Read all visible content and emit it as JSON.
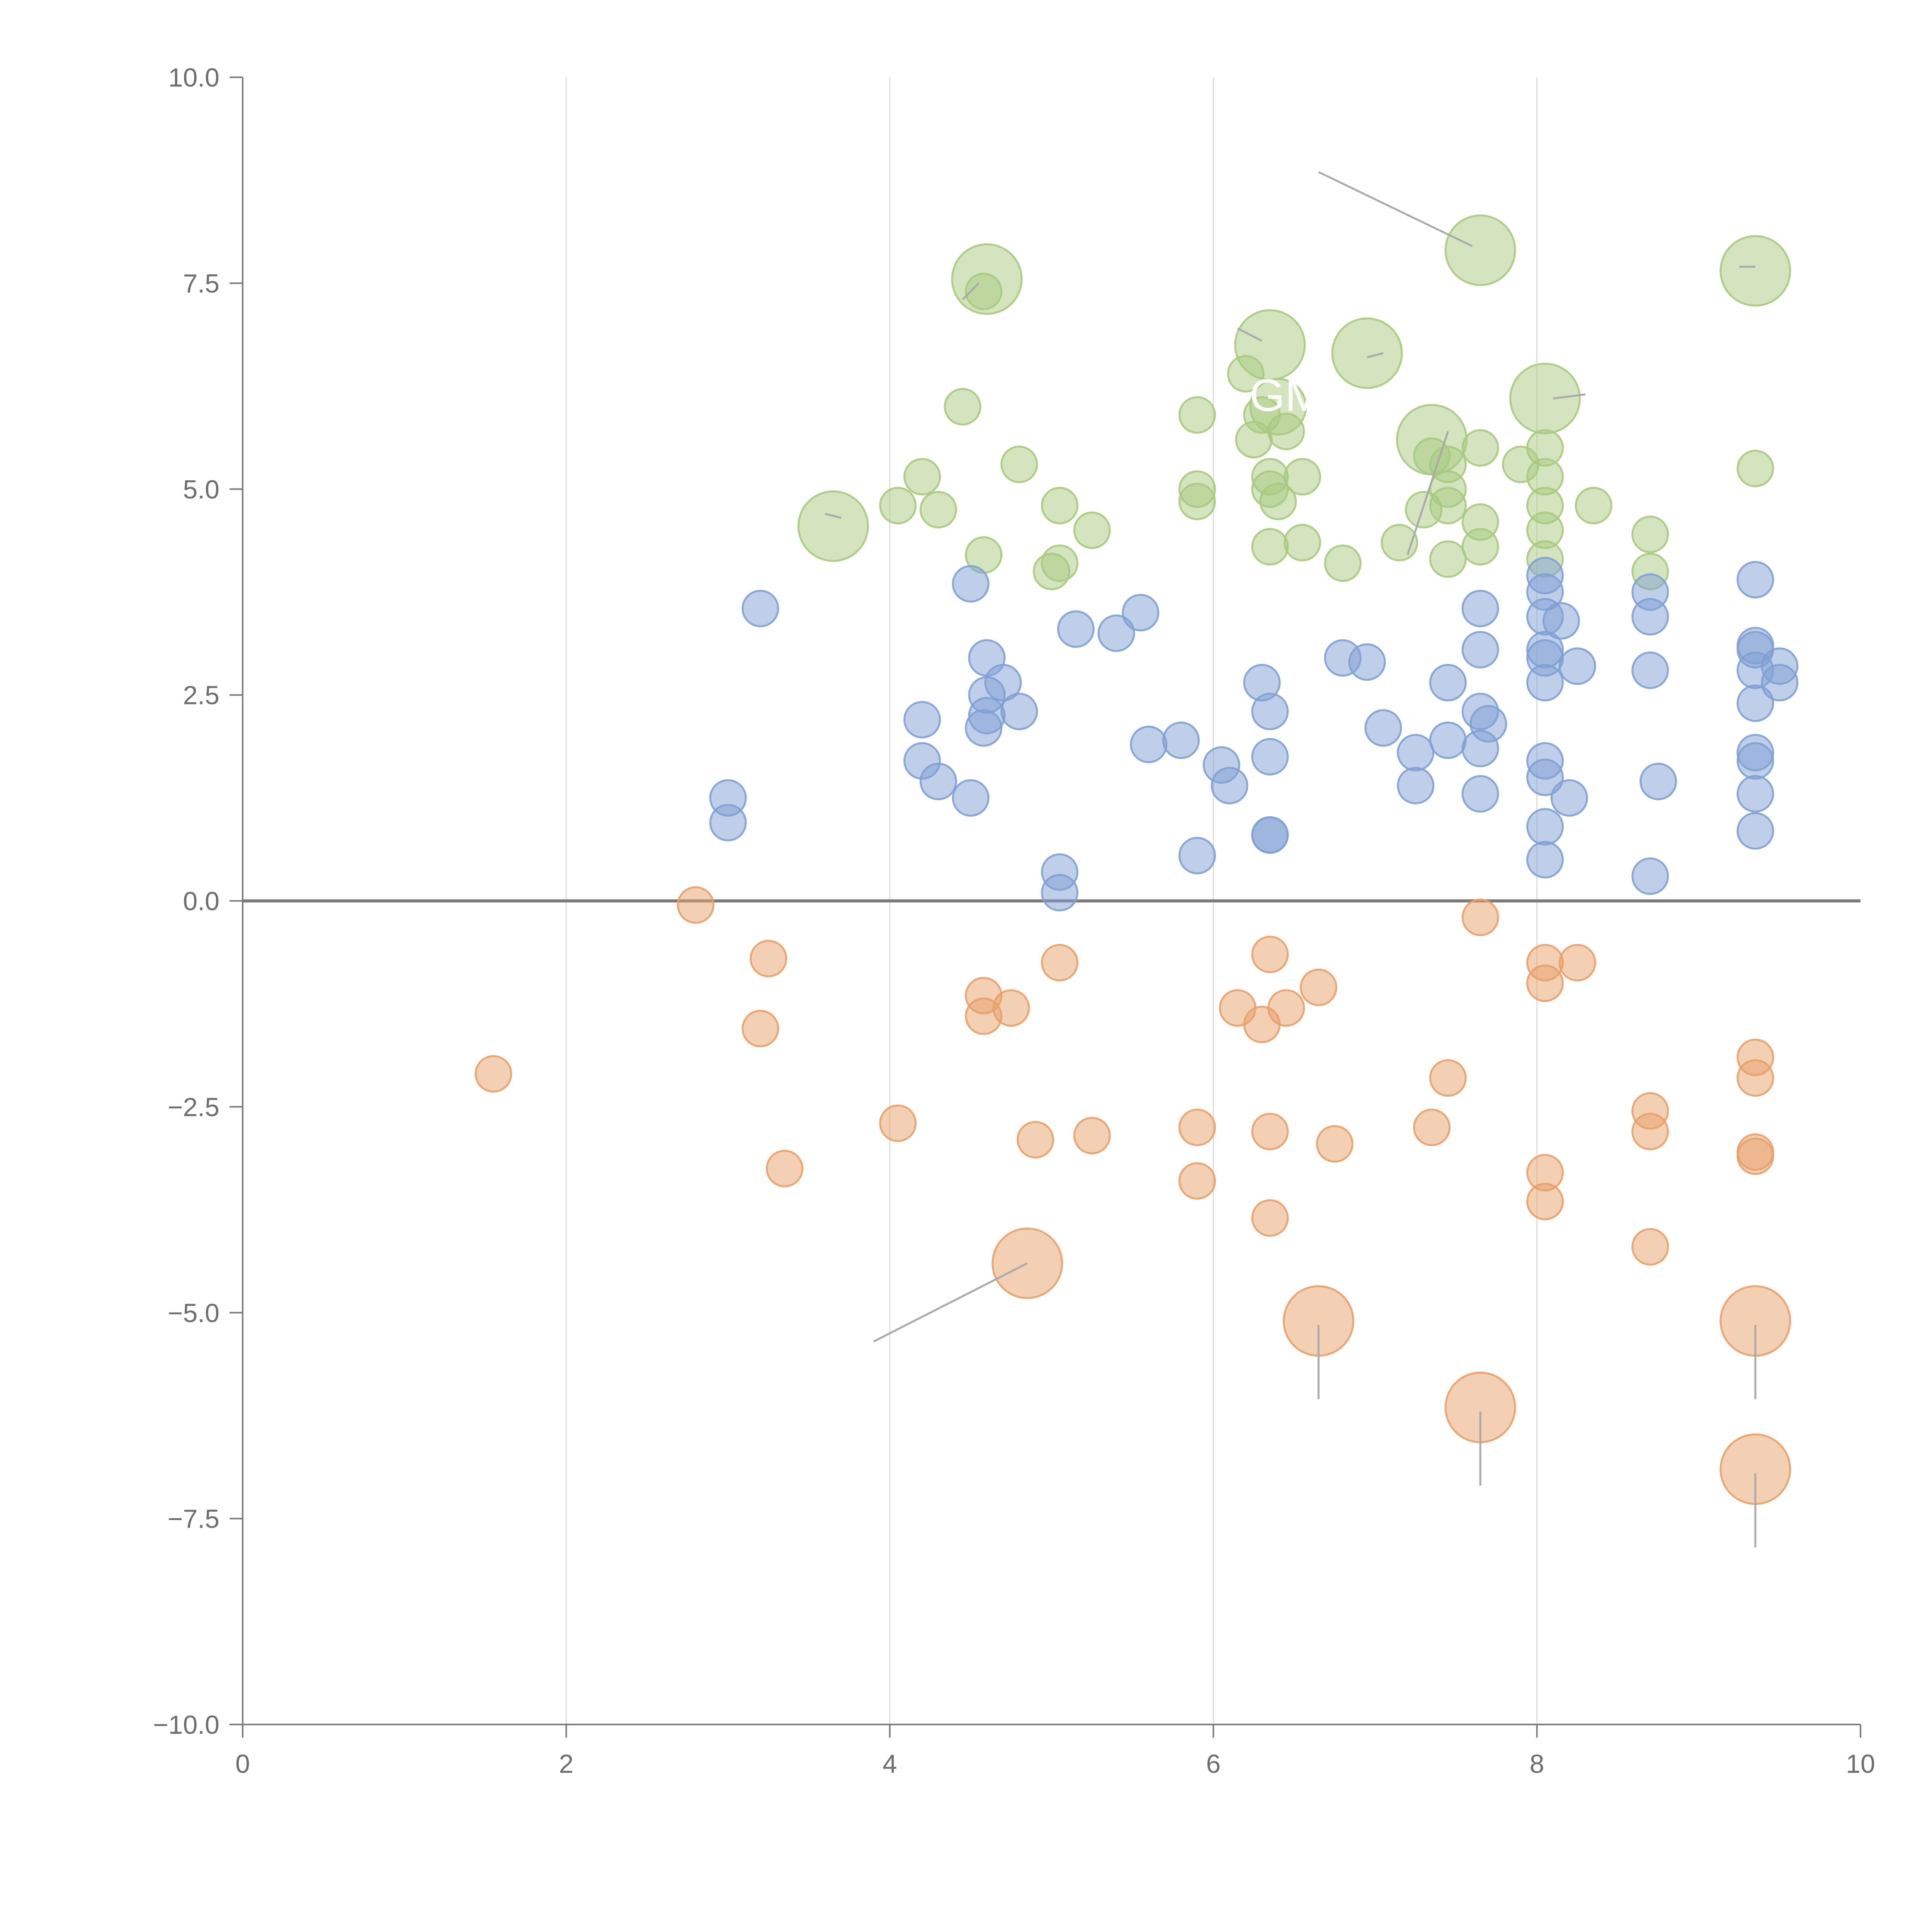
{
  "chart_data": {
    "type": "scatter",
    "title": "",
    "xlabel": "",
    "ylabel": "",
    "xlim": [
      0,
      10
    ],
    "ylim": [
      -10,
      10
    ],
    "x_ticks": [
      "0",
      "2",
      "4",
      "6",
      "8",
      "10"
    ],
    "x_tick_values": [
      0,
      2,
      4,
      6,
      8,
      10
    ],
    "y_ticks": [
      "10.0",
      "7.5",
      "5.0",
      "2.5",
      "0.0",
      "−2.5",
      "−5.0",
      "−7.5",
      "−10.0"
    ],
    "y_tick_values": [
      10,
      7.5,
      5,
      2.5,
      0,
      -2.5,
      -5,
      -7.5,
      -10
    ],
    "grid": "vertical",
    "zero_line": 0,
    "colors": {
      "green": "#a8c97f",
      "blue": "#7fa0d4",
      "orange": "#e8a06a",
      "grid": "#dcdcdc",
      "axis": "#7a7a7a",
      "leader": "#aaaaaa"
    },
    "annotations": [
      {
        "text": "GM",
        "x": 6.45,
        "y": 5.95
      }
    ],
    "series": [
      {
        "name": "green",
        "points": [
          [
            4.6,
            7.55,
            3
          ],
          [
            7.65,
            7.9,
            3
          ],
          [
            9.35,
            7.65,
            3
          ],
          [
            6.35,
            6.75,
            3
          ],
          [
            6.95,
            6.65,
            3
          ],
          [
            8.05,
            6.1,
            3
          ],
          [
            7.35,
            5.6,
            3
          ],
          [
            3.65,
            4.55,
            3
          ],
          [
            6.4,
            6.0,
            2
          ],
          [
            4.58,
            7.4,
            1
          ],
          [
            6.2,
            6.4,
            1
          ],
          [
            4.45,
            6.0,
            1
          ],
          [
            5.9,
            5.9,
            1
          ],
          [
            6.3,
            5.9,
            1
          ],
          [
            6.25,
            5.6,
            1
          ],
          [
            6.45,
            5.7,
            1
          ],
          [
            7.65,
            5.5,
            1
          ],
          [
            8.05,
            5.5,
            1
          ],
          [
            4.8,
            5.3,
            1
          ],
          [
            7.35,
            5.4,
            1
          ],
          [
            7.45,
            5.3,
            1
          ],
          [
            7.9,
            5.3,
            1
          ],
          [
            9.35,
            5.25,
            1
          ],
          [
            4.2,
            5.15,
            1
          ],
          [
            6.35,
            5.15,
            1
          ],
          [
            6.55,
            5.15,
            1
          ],
          [
            8.05,
            5.15,
            1
          ],
          [
            5.9,
            5.0,
            1
          ],
          [
            6.35,
            5.0,
            1
          ],
          [
            7.45,
            5.0,
            1
          ],
          [
            4.05,
            4.8,
            1
          ],
          [
            4.3,
            4.75,
            1
          ],
          [
            5.05,
            4.8,
            1
          ],
          [
            5.9,
            4.85,
            1
          ],
          [
            6.4,
            4.85,
            1
          ],
          [
            7.3,
            4.75,
            1
          ],
          [
            7.45,
            4.8,
            1
          ],
          [
            8.05,
            4.8,
            1
          ],
          [
            8.35,
            4.8,
            1
          ],
          [
            5.25,
            4.5,
            1
          ],
          [
            7.65,
            4.6,
            1
          ],
          [
            8.05,
            4.5,
            1
          ],
          [
            8.7,
            4.45,
            1
          ],
          [
            4.58,
            4.2,
            1
          ],
          [
            5.05,
            4.1,
            1
          ],
          [
            5.0,
            4.0,
            1
          ],
          [
            6.35,
            4.3,
            1
          ],
          [
            6.55,
            4.35,
            1
          ],
          [
            6.8,
            4.1,
            1
          ],
          [
            7.15,
            4.35,
            1
          ],
          [
            7.45,
            4.15,
            1
          ],
          [
            7.65,
            4.3,
            1
          ],
          [
            8.05,
            4.15,
            1
          ],
          [
            8.7,
            4.0,
            1
          ]
        ]
      },
      {
        "name": "blue",
        "points": [
          [
            3.2,
            3.55,
            1
          ],
          [
            4.5,
            3.85,
            1
          ],
          [
            5.15,
            3.3,
            1
          ],
          [
            5.4,
            3.25,
            1
          ],
          [
            5.55,
            3.5,
            1
          ],
          [
            7.65,
            3.55,
            1
          ],
          [
            8.05,
            3.95,
            1
          ],
          [
            8.05,
            3.75,
            1
          ],
          [
            9.35,
            3.9,
            1
          ],
          [
            8.05,
            3.45,
            1
          ],
          [
            8.15,
            3.4,
            1
          ],
          [
            8.7,
            3.75,
            1
          ],
          [
            8.7,
            3.45,
            1
          ],
          [
            9.35,
            3.05,
            1
          ],
          [
            4.6,
            2.95,
            1
          ],
          [
            6.8,
            2.95,
            1
          ],
          [
            6.95,
            2.9,
            1
          ],
          [
            7.65,
            3.05,
            1
          ],
          [
            8.05,
            3.05,
            1
          ],
          [
            8.05,
            2.95,
            1
          ],
          [
            8.25,
            2.85,
            1
          ],
          [
            8.7,
            2.8,
            1
          ],
          [
            9.35,
            2.8,
            1
          ],
          [
            9.5,
            2.85,
            1
          ],
          [
            9.35,
            3.1,
            1
          ],
          [
            4.6,
            2.5,
            1
          ],
          [
            4.7,
            2.65,
            1
          ],
          [
            6.3,
            2.65,
            1
          ],
          [
            7.45,
            2.65,
            1
          ],
          [
            8.05,
            2.65,
            1
          ],
          [
            9.5,
            2.65,
            1
          ],
          [
            4.2,
            2.2,
            1
          ],
          [
            4.6,
            2.25,
            1
          ],
          [
            4.58,
            2.1,
            1
          ],
          [
            4.8,
            2.3,
            1
          ],
          [
            6.35,
            2.3,
            1
          ],
          [
            7.65,
            2.3,
            1
          ],
          [
            7.05,
            2.1,
            1
          ],
          [
            7.7,
            2.15,
            1
          ],
          [
            9.35,
            2.4,
            1
          ],
          [
            5.6,
            1.9,
            1
          ],
          [
            5.8,
            1.95,
            1
          ],
          [
            7.45,
            1.95,
            1
          ],
          [
            7.65,
            1.85,
            1
          ],
          [
            7.25,
            1.8,
            1
          ],
          [
            6.35,
            1.75,
            1
          ],
          [
            4.2,
            1.7,
            1
          ],
          [
            6.05,
            1.65,
            1
          ],
          [
            8.05,
            1.7,
            1
          ],
          [
            9.35,
            1.8,
            1
          ],
          [
            9.35,
            1.7,
            1
          ],
          [
            4.3,
            1.45,
            1
          ],
          [
            4.5,
            1.25,
            1
          ],
          [
            6.1,
            1.4,
            1
          ],
          [
            7.25,
            1.4,
            1
          ],
          [
            7.65,
            1.3,
            1
          ],
          [
            8.05,
            1.5,
            1
          ],
          [
            8.2,
            1.25,
            1
          ],
          [
            8.75,
            1.45,
            1
          ],
          [
            9.35,
            1.3,
            1
          ],
          [
            3.0,
            1.25,
            1
          ],
          [
            3.0,
            0.95,
            1
          ],
          [
            6.35,
            0.8,
            1
          ],
          [
            6.35,
            0.8,
            1
          ],
          [
            8.05,
            0.9,
            1
          ],
          [
            9.35,
            0.85,
            1
          ],
          [
            5.9,
            0.55,
            1
          ],
          [
            8.05,
            0.5,
            1
          ],
          [
            5.05,
            0.35,
            1
          ],
          [
            5.05,
            0.1,
            1
          ],
          [
            8.7,
            0.3,
            1
          ]
        ]
      },
      {
        "name": "orange",
        "points": [
          [
            2.8,
            -0.05,
            1
          ],
          [
            7.65,
            -0.2,
            1
          ],
          [
            3.25,
            -0.7,
            1
          ],
          [
            6.35,
            -0.65,
            1
          ],
          [
            5.05,
            -0.75,
            1
          ],
          [
            8.05,
            -0.75,
            1
          ],
          [
            8.25,
            -0.75,
            1
          ],
          [
            8.05,
            -1.0,
            1
          ],
          [
            6.65,
            -1.05,
            1
          ],
          [
            4.58,
            -1.15,
            1
          ],
          [
            4.75,
            -1.3,
            1
          ],
          [
            4.58,
            -1.4,
            1
          ],
          [
            6.15,
            -1.3,
            1
          ],
          [
            6.45,
            -1.3,
            1
          ],
          [
            6.3,
            -1.5,
            1
          ],
          [
            3.2,
            -1.55,
            1
          ],
          [
            9.35,
            -1.9,
            1
          ],
          [
            9.35,
            -2.15,
            1
          ],
          [
            7.45,
            -2.15,
            1
          ],
          [
            1.55,
            -2.1,
            1
          ],
          [
            8.7,
            -2.55,
            1
          ],
          [
            4.05,
            -2.7,
            1
          ],
          [
            5.9,
            -2.75,
            1
          ],
          [
            6.35,
            -2.8,
            1
          ],
          [
            7.35,
            -2.75,
            1
          ],
          [
            8.7,
            -2.8,
            1
          ],
          [
            4.9,
            -2.9,
            1
          ],
          [
            5.25,
            -2.85,
            1
          ],
          [
            6.75,
            -2.95,
            1
          ],
          [
            9.35,
            -3.05,
            1
          ],
          [
            9.35,
            -3.1,
            1
          ],
          [
            3.35,
            -3.25,
            1
          ],
          [
            8.05,
            -3.3,
            1
          ],
          [
            5.9,
            -3.4,
            1
          ],
          [
            8.05,
            -3.65,
            1
          ],
          [
            6.35,
            -3.85,
            1
          ],
          [
            8.7,
            -4.2,
            1
          ],
          [
            4.85,
            -4.4,
            3
          ],
          [
            6.65,
            -5.1,
            3
          ],
          [
            9.35,
            -5.1,
            3
          ],
          [
            7.65,
            -6.15,
            3
          ],
          [
            9.35,
            -6.9,
            3
          ]
        ]
      }
    ],
    "leader_lines": [
      [
        7.6,
        7.95,
        6.65,
        8.85
      ],
      [
        4.85,
        -4.4,
        3.9,
        -5.35
      ],
      [
        6.65,
        -5.15,
        6.65,
        -6.05
      ],
      [
        9.35,
        -5.15,
        9.35,
        -6.05
      ],
      [
        7.65,
        -6.2,
        7.65,
        -7.1
      ],
      [
        9.35,
        -6.95,
        9.35,
        -7.85
      ],
      [
        4.55,
        7.5,
        4.45,
        7.3
      ],
      [
        6.3,
        6.8,
        6.15,
        6.95
      ],
      [
        7.05,
        6.65,
        6.95,
        6.6
      ],
      [
        8.1,
        6.1,
        8.3,
        6.15
      ],
      [
        9.35,
        7.7,
        9.25,
        7.7
      ],
      [
        7.45,
        5.7,
        7.2,
        4.2
      ],
      [
        3.7,
        4.65,
        3.6,
        4.7
      ]
    ]
  }
}
